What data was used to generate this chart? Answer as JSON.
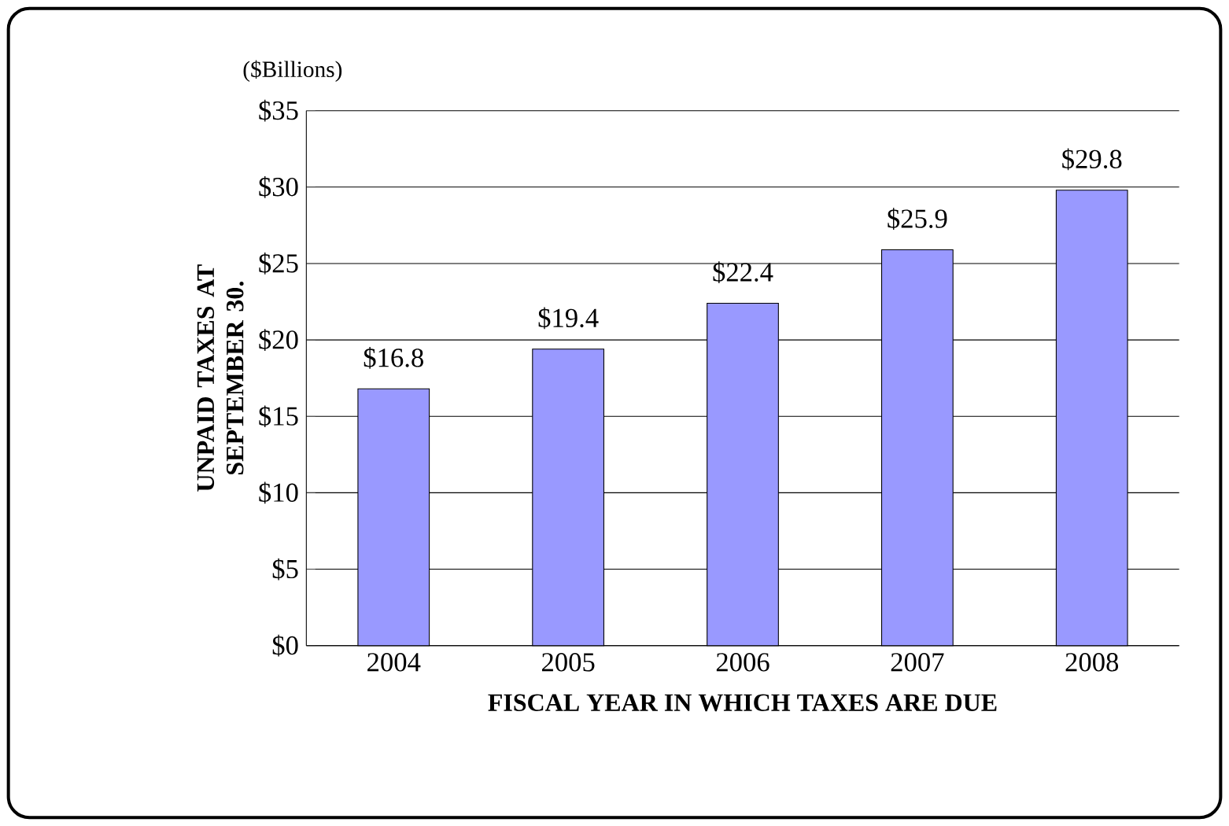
{
  "chart_data": {
    "type": "bar",
    "categories": [
      "2004",
      "2005",
      "2006",
      "2007",
      "2008"
    ],
    "values": [
      16.8,
      19.4,
      22.4,
      25.9,
      29.8
    ],
    "value_labels": [
      "$16.8",
      "$19.4",
      "$22.4",
      "$25.9",
      "$29.8"
    ],
    "color": "#9999ff",
    "xlabel": "FISCAL YEAR IN WHICH TAXES ARE DUE",
    "ylabel": "UNPAID TAXES AT SEPTEMBER 30.",
    "annotations": [
      "($Billions)"
    ],
    "ylim": [
      0,
      35
    ],
    "yticks": [
      {
        "value": 0,
        "label": "$0"
      },
      {
        "value": 5,
        "label": "$5"
      },
      {
        "value": 10,
        "label": "$10"
      },
      {
        "value": 15,
        "label": "$15"
      },
      {
        "value": 20,
        "label": "$20"
      },
      {
        "value": 25,
        "label": "$25"
      },
      {
        "value": 30,
        "label": "$30"
      },
      {
        "value": 35,
        "label": "$35"
      }
    ],
    "grid": "y"
  }
}
